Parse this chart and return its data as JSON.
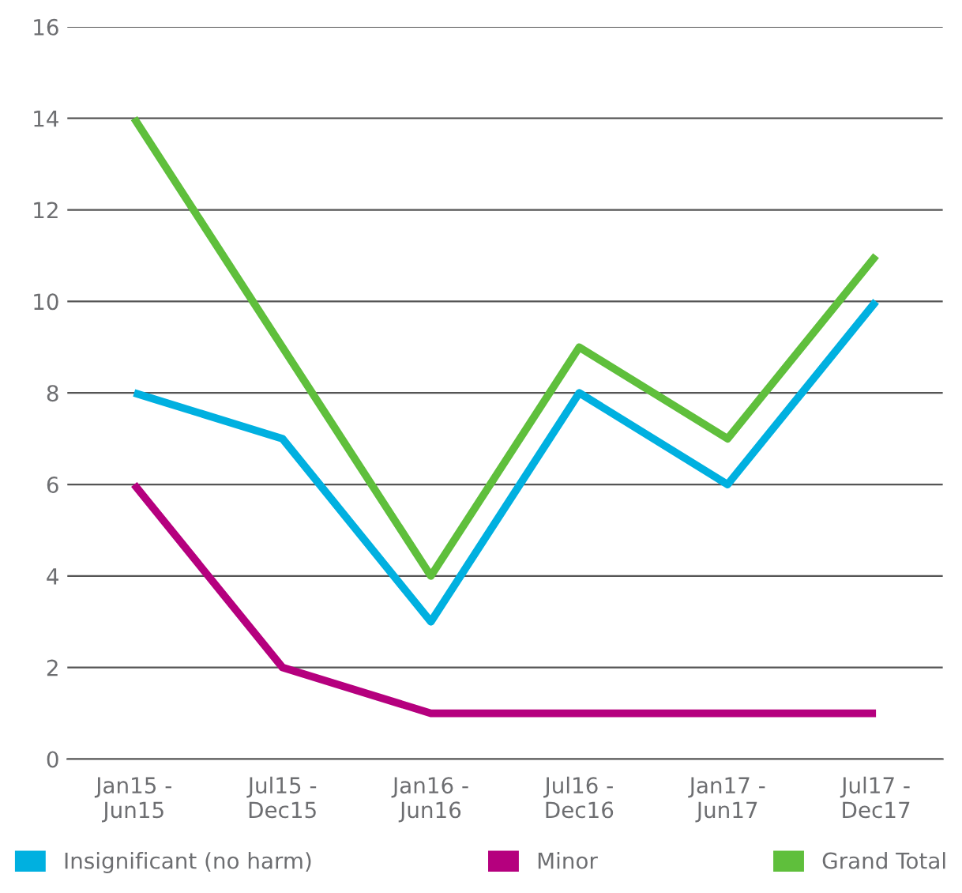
{
  "chart_data": {
    "type": "line",
    "categories": [
      "Jan15 -\nJun15",
      "Jul15 -\nDec15",
      "Jan16 -\nJun16",
      "Jul16 -\nDec16",
      "Jan17 -\nJun17",
      "Jul17 -\nDec17"
    ],
    "series": [
      {
        "name": "Insignificant (no harm)",
        "color": "#00b0e0",
        "values": [
          8,
          7,
          3,
          8,
          6,
          10
        ]
      },
      {
        "name": "Minor",
        "color": "#b5007e",
        "values": [
          6,
          2,
          1,
          1,
          1,
          1
        ]
      },
      {
        "name": "Grand Total",
        "color": "#5fbf3c",
        "values": [
          14,
          9,
          4,
          9,
          7,
          11
        ]
      }
    ],
    "ylim": [
      0,
      16
    ],
    "yticks": [
      0,
      2,
      4,
      6,
      8,
      10,
      12,
      14,
      16
    ],
    "grid": "y",
    "legend": "bottom",
    "marker": "none",
    "line_style": "solid"
  }
}
